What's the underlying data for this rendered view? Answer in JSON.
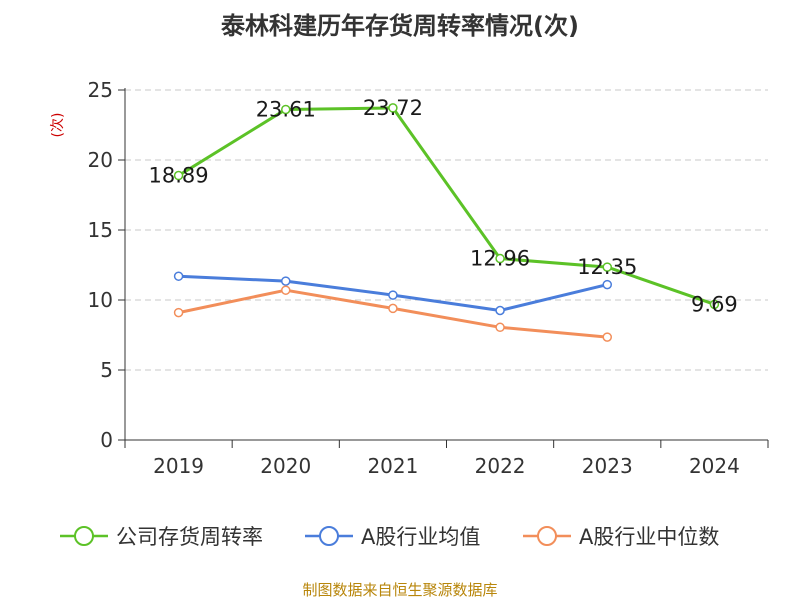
{
  "chart_data": {
    "type": "line",
    "title": "泰林科建历年存货周转率情况(次)",
    "ylabel": "(次)",
    "xlabel": "",
    "categories": [
      "2019",
      "2020",
      "2021",
      "2022",
      "2023",
      "2024"
    ],
    "ylim": [
      0,
      25
    ],
    "yticks": [
      0,
      5,
      10,
      15,
      20,
      25
    ],
    "grid": true,
    "legend_position": "bottom",
    "series": [
      {
        "name": "公司存货周转率",
        "color": "#5cc227",
        "values": [
          18.89,
          23.61,
          23.72,
          12.96,
          12.35,
          9.69
        ],
        "data_labels": [
          "18.89",
          "23.61",
          "23.72",
          "12.96",
          "12.35",
          "9.69"
        ]
      },
      {
        "name": "A股行业均值",
        "color": "#4a7ddb",
        "values": [
          11.7,
          11.35,
          10.35,
          9.25,
          11.1,
          null
        ]
      },
      {
        "name": "A股行业中位数",
        "color": "#f28e5a",
        "values": [
          9.1,
          10.7,
          9.4,
          8.05,
          7.35,
          null
        ]
      }
    ]
  },
  "footer": "制图数据来自恒生聚源数据库"
}
